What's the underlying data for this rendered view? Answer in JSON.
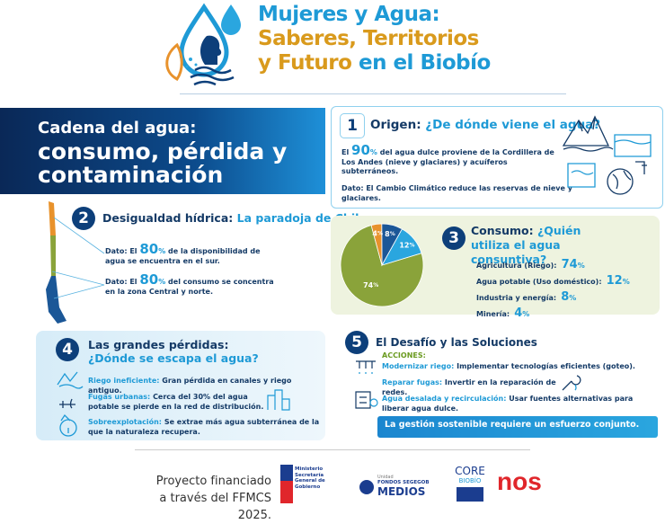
{
  "header": {
    "title_1": "Mujeres y Agua:",
    "title_2": "Saberes, Territorios",
    "title_3a": "y Futuro",
    "title_3b": "en el Biobío"
  },
  "intro": {
    "line_1": "Cadena del agua:",
    "line_2": "consumo, pérdida y",
    "line_3": "contaminación"
  },
  "origen": {
    "number": 1,
    "title": "Origen:",
    "question": "¿De dónde viene el agua?",
    "fact": {
      "pre": "El",
      "value": 90,
      "unit": "%",
      "post": "del agua dulce proviene de la Cordillera de Los Andes (nieve y glaciares) y acuíferos subterráneos."
    },
    "note": "Dato: El Cambio Climático reduce las reservas de nieve y glaciares."
  },
  "desigualdad": {
    "number": 2,
    "title": "Desigualdad hídrica:",
    "subtitle": "La paradoja de Chile",
    "facts": [
      {
        "pre": "Dato: El",
        "value": 80,
        "unit": "%",
        "post": "de la disponibilidad de agua se encuentra en el sur."
      },
      {
        "pre": "Dato: El",
        "value": 80,
        "unit": "%",
        "post": "del consumo se concentra en la zona Central y norte."
      }
    ]
  },
  "consumo": {
    "number": 3,
    "title": "Consumo:",
    "question": "¿Quién utiliza el agua consuntiva?",
    "type": "pie",
    "unit": "%",
    "items": [
      {
        "label": "Agricultura (Riego):",
        "value": 74,
        "color": "#8aa33a"
      },
      {
        "label": "Agua potable (Uso doméstico):",
        "value": 12,
        "color": "#2aa6df"
      },
      {
        "label": "Industria y energía:",
        "value": 8,
        "color": "#1b5797"
      },
      {
        "label": "Minería:",
        "value": 4,
        "color": "#e8922c"
      }
    ]
  },
  "perdidas": {
    "number": 4,
    "title": "Las grandes pérdidas:",
    "question": "¿Dónde se escapa el agua?",
    "items": [
      {
        "label": "Riego ineficiente:",
        "text": "Gran pérdida en canales y riego antiguo."
      },
      {
        "label": "Fugas urbanas:",
        "text": "Cerca del 30% del agua potable se pierde en la red de distribución."
      },
      {
        "label": "Sobreexplotación:",
        "text": "Se extrae más agua subterránea de la que la naturaleza recupera."
      }
    ]
  },
  "soluciones": {
    "number": 5,
    "title": "El Desafío y las Soluciones",
    "actions": "ACCIONES:",
    "items": [
      {
        "label": "Modernizar riego:",
        "text": "Implementar tecnologías eficientes (goteo)."
      },
      {
        "label": "Reparar fugas:",
        "text": "Invertir en la reparación de redes."
      },
      {
        "label": "Agua desalada y recirculación:",
        "text": "Usar fuentes alternativas para liberar agua dulce."
      }
    ],
    "banner": "La gestión sostenible requiere un esfuerzo conjunto."
  },
  "footer": {
    "line_1": "Proyecto financiado",
    "line_2": "a través del FFMCS 2025.",
    "ministerio": "Ministerio Secretaría General de Gobierno",
    "unidad": "Unidad",
    "fondos": "FONDOS SEGEGOB",
    "medios": "MEDIOS",
    "core": "CORE",
    "biobio": "BIOBÍO",
    "nos": "nos"
  }
}
